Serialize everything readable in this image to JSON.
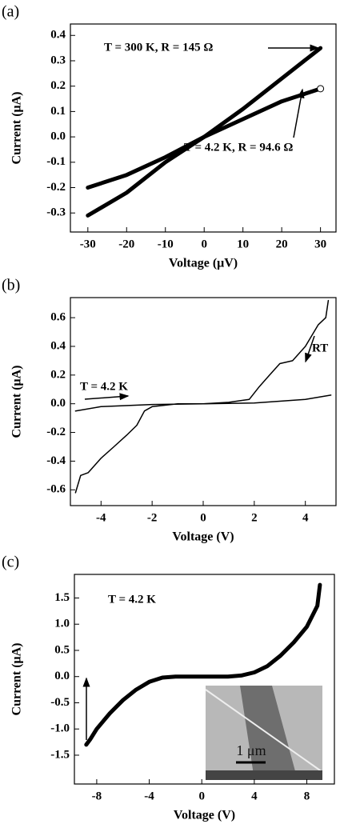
{
  "chart_data": [
    {
      "type": "line",
      "panel_label": "(a)",
      "x_label": "Voltage (μV)",
      "y_label": "Current (μA)",
      "xlim": [
        -34.5,
        34
      ],
      "ylim": [
        -0.375,
        0.445
      ],
      "xticks": [
        -30,
        -20,
        -10,
        0,
        10,
        20,
        30
      ],
      "yticks": [
        -0.3,
        -0.2,
        -0.1,
        {
          "value": 0,
          "label": "0.0"
        },
        0.1,
        0.2,
        0.3,
        0.4
      ],
      "series": [
        {
          "name": "T = 300 K, R = 145 Ω",
          "color": "#000000",
          "x": [
            -30,
            -20,
            -10,
            0,
            10,
            20,
            30
          ],
          "values": [
            -0.31,
            -0.22,
            -0.1,
            0.0,
            0.11,
            0.23,
            0.35
          ]
        },
        {
          "name": "T = 4.2 K, R = 94.6 Ω",
          "color": "#000000",
          "x": [
            -30,
            -20,
            -10,
            0,
            10,
            20,
            30
          ],
          "values": [
            -0.2,
            -0.15,
            -0.08,
            0.0,
            0.07,
            0.14,
            0.19
          ]
        }
      ]
    },
    {
      "type": "line",
      "panel_label": "(b)",
      "x_label": "Voltage (V)",
      "y_label": "Current (μA)",
      "xlim": [
        -5.2,
        5.2
      ],
      "ylim": [
        -0.71,
        0.74
      ],
      "xticks": [
        -4,
        -2,
        0,
        2,
        4
      ],
      "yticks": [
        -0.6,
        -0.4,
        -0.2,
        {
          "value": 0,
          "label": "0.0"
        },
        0.2,
        0.4,
        0.6
      ],
      "series": [
        {
          "name": "RT",
          "color": "#000000",
          "x": [
            -5,
            -4.8,
            -4.5,
            -4,
            -3.5,
            -3,
            -2.6,
            -2.3,
            -2,
            -1,
            0,
            1,
            1.8,
            2.2,
            2.6,
            3,
            3.5,
            4,
            4.5,
            4.8,
            4.9
          ],
          "values": [
            -0.62,
            -0.5,
            -0.48,
            -0.38,
            -0.3,
            -0.22,
            -0.15,
            -0.05,
            -0.02,
            0,
            0,
            0.01,
            0.03,
            0.12,
            0.2,
            0.28,
            0.3,
            0.4,
            0.55,
            0.6,
            0.72
          ]
        },
        {
          "name": "T = 4.2 K",
          "color": "#000000",
          "x": [
            -5,
            -4,
            -2,
            0,
            2,
            4,
            5
          ],
          "values": [
            -0.05,
            -0.02,
            -0.005,
            0,
            0.005,
            0.03,
            0.06
          ]
        }
      ]
    },
    {
      "type": "line",
      "panel_label": "(c)",
      "x_label": "Voltage (V)",
      "y_label": "Current (μA)",
      "xlim": [
        -9.7,
        10.1
      ],
      "ylim": [
        -2.05,
        1.95
      ],
      "xticks": [
        -8,
        -4,
        0,
        4,
        8
      ],
      "yticks": [
        -1.5,
        {
          "value": -1,
          "label": "-1.0"
        },
        -0.5,
        {
          "value": 0,
          "label": "0.0"
        },
        0.5,
        {
          "value": 1,
          "label": "1.0"
        },
        1.5
      ],
      "inset_label": "1 μm",
      "series": [
        {
          "name": "T = 4.2 K",
          "color": "#000000",
          "x": [
            -8.8,
            -8.5,
            -8,
            -7,
            -6,
            -5,
            -4,
            -3,
            -2,
            0,
            2,
            3,
            4,
            5,
            6,
            7,
            8,
            8.8,
            9
          ],
          "values": [
            -1.3,
            -1.2,
            -1.0,
            -0.7,
            -0.45,
            -0.25,
            -0.1,
            -0.02,
            0,
            0,
            0,
            0.02,
            0.08,
            0.2,
            0.4,
            0.65,
            0.95,
            1.35,
            1.75
          ]
        }
      ]
    }
  ]
}
